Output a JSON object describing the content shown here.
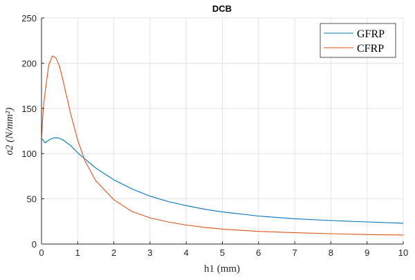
{
  "chart_data": {
    "type": "line",
    "title": "DCB",
    "xlabel": "h1 (mm)",
    "ylabel": "σ2 (N/mm²)",
    "xlim": [
      0,
      10
    ],
    "ylim": [
      0,
      250
    ],
    "xticks": [
      0,
      1,
      2,
      3,
      4,
      5,
      6,
      7,
      8,
      9,
      10
    ],
    "yticks": [
      0,
      50,
      100,
      150,
      200,
      250
    ],
    "grid": true,
    "legend_position": "northeast",
    "series": [
      {
        "name": "GFRP",
        "color": "#0072BD",
        "x": [
          0,
          0.1,
          0.2,
          0.3,
          0.4,
          0.5,
          0.6,
          0.8,
          1.0,
          1.2,
          1.5,
          2,
          2.5,
          3,
          3.5,
          4,
          4.5,
          5,
          6,
          7,
          8,
          9,
          10
        ],
        "y": [
          117,
          112,
          115,
          117,
          117.5,
          117,
          115,
          109,
          101,
          94,
          84,
          71,
          61,
          53,
          47,
          42.5,
          38.5,
          35.5,
          31,
          28,
          26,
          24.5,
          23
        ]
      },
      {
        "name": "CFRP",
        "color": "#D95319",
        "x": [
          0,
          0.05,
          0.1,
          0.2,
          0.3,
          0.4,
          0.5,
          0.6,
          0.8,
          1.0,
          1.2,
          1.5,
          2,
          2.5,
          3,
          3.5,
          4,
          4.5,
          5,
          6,
          7,
          8,
          9,
          10
        ],
        "y": [
          117,
          150,
          168,
          198,
          208,
          206,
          196,
          180,
          145,
          115,
          92,
          70,
          49,
          36,
          29,
          24.5,
          21,
          18.5,
          16.5,
          14,
          12.5,
          11.5,
          10.5,
          10
        ]
      }
    ]
  }
}
